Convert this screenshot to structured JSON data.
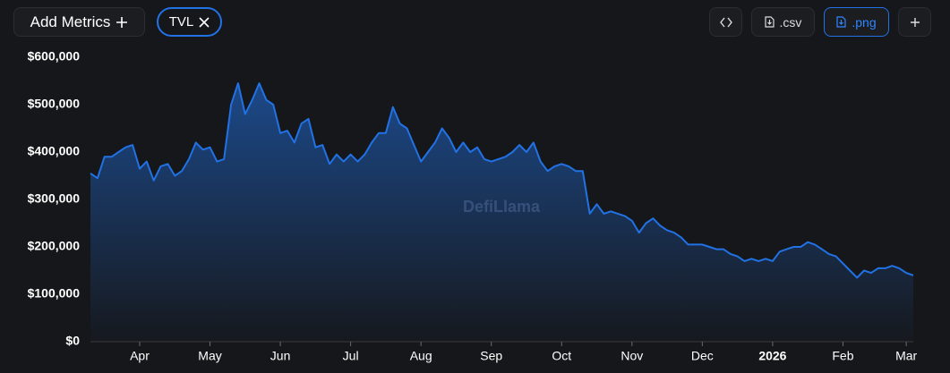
{
  "toolbar": {
    "add_metrics": "Add Metrics",
    "metric_tag": "TVL",
    "buttons": [
      ".csv",
      ".png"
    ]
  },
  "chart_data": {
    "type": "line",
    "watermark": "DefiLlama",
    "color": "#2172e5",
    "categories": [
      null,
      null,
      null,
      null,
      null,
      null,
      null,
      "Apr",
      null,
      null,
      null,
      null,
      null,
      null,
      null,
      null,
      null,
      "May",
      null,
      null,
      null,
      null,
      null,
      null,
      null,
      null,
      null,
      "Jun",
      null,
      null,
      null,
      null,
      null,
      null,
      null,
      null,
      null,
      "Jul",
      null,
      null,
      null,
      null,
      null,
      null,
      null,
      null,
      null,
      "Aug",
      null,
      null,
      null,
      null,
      null,
      null,
      null,
      null,
      null,
      "Sep",
      null,
      null,
      null,
      null,
      null,
      null,
      null,
      null,
      null,
      "Oct",
      null,
      null,
      null,
      null,
      null,
      null,
      null,
      null,
      null,
      "Nov",
      null,
      null,
      null,
      null,
      null,
      null,
      null,
      null,
      null,
      "Dec",
      null,
      null,
      null,
      null,
      null,
      null,
      null,
      null,
      null,
      "2026",
      null,
      null,
      null,
      null,
      null,
      null,
      null,
      null,
      null,
      "Feb",
      null,
      null,
      null,
      null,
      null,
      null,
      null,
      null,
      "Mar",
      null
    ],
    "values": [
      355000,
      345000,
      390000,
      390000,
      400000,
      410000,
      415000,
      365000,
      380000,
      340000,
      370000,
      375000,
      350000,
      360000,
      385000,
      420000,
      405000,
      410000,
      380000,
      385000,
      500000,
      545000,
      480000,
      510000,
      545000,
      510000,
      500000,
      440000,
      445000,
      420000,
      460000,
      470000,
      410000,
      415000,
      375000,
      395000,
      380000,
      395000,
      380000,
      395000,
      420000,
      440000,
      440000,
      495000,
      460000,
      450000,
      415000,
      380000,
      400000,
      420000,
      450000,
      430000,
      400000,
      420000,
      400000,
      410000,
      385000,
      380000,
      385000,
      390000,
      400000,
      415000,
      400000,
      420000,
      380000,
      360000,
      370000,
      375000,
      370000,
      360000,
      360000,
      270000,
      290000,
      270000,
      275000,
      270000,
      265000,
      255000,
      230000,
      250000,
      260000,
      245000,
      235000,
      230000,
      220000,
      205000,
      205000,
      205000,
      200000,
      195000,
      195000,
      185000,
      180000,
      170000,
      175000,
      170000,
      175000,
      170000,
      190000,
      195000,
      200000,
      200000,
      210000,
      205000,
      195000,
      185000,
      180000,
      165000,
      150000,
      135000,
      150000,
      145000,
      155000,
      155000,
      160000,
      155000,
      145000,
      140000
    ],
    "ylim": [
      0,
      600000
    ],
    "yticks": [
      {
        "value": 0,
        "label": "$0"
      },
      {
        "value": 100000,
        "label": "$100,000"
      },
      {
        "value": 200000,
        "label": "$200,000"
      },
      {
        "value": 300000,
        "label": "$300,000"
      },
      {
        "value": 400000,
        "label": "$400,000"
      },
      {
        "value": 500000,
        "label": "$500,000"
      },
      {
        "value": 600000,
        "label": "$600,000"
      }
    ]
  }
}
